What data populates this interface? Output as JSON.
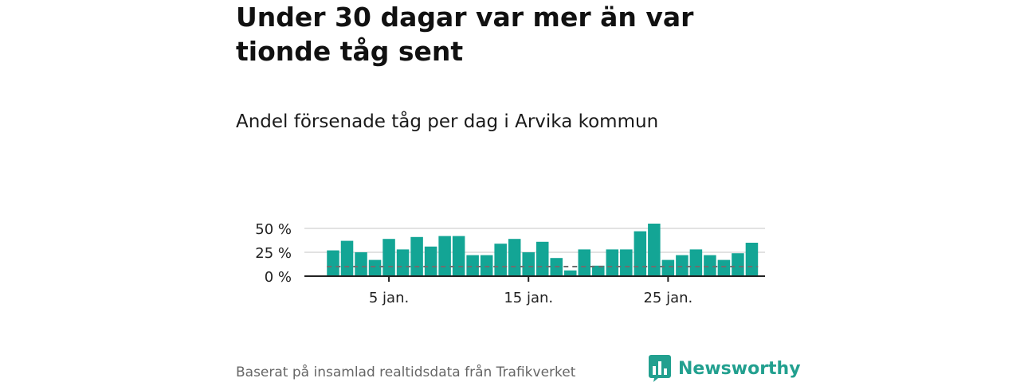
{
  "title": "Under 30 dagar var mer än var tionde tåg sent",
  "subtitle": "Andel försenade tåg per dag i Arvika kommun",
  "footer": {
    "source": "Baserat på insamlad realtidsdata från Trafikverket",
    "brand": "Newsworthy"
  },
  "colors": {
    "bar": "#13a595",
    "grid": "#d8d8d8",
    "axis": "#222222",
    "reference_line": "#6e6e6e",
    "brand": "#22a08f"
  },
  "chart_data": {
    "type": "bar",
    "x": [
      1,
      2,
      3,
      4,
      5,
      6,
      7,
      8,
      9,
      10,
      11,
      12,
      13,
      14,
      15,
      16,
      17,
      18,
      19,
      20,
      21,
      22,
      23,
      24,
      25,
      26,
      27,
      28,
      29,
      30,
      31
    ],
    "values": [
      27,
      37,
      25,
      17,
      39,
      28,
      41,
      31,
      42,
      42,
      22,
      22,
      34,
      39,
      25,
      36,
      19,
      6,
      28,
      11,
      28,
      28,
      47,
      55,
      17,
      22,
      28,
      22,
      17,
      24,
      35
    ],
    "unit": "%",
    "ylim": [
      0,
      55
    ],
    "yticks": [
      0,
      25,
      50
    ],
    "ytick_labels": [
      "0 %",
      "25 %",
      "50 %"
    ],
    "xticks": [
      5,
      15,
      25
    ],
    "xtick_labels": [
      "5 jan.",
      "15 jan.",
      "25 jan."
    ],
    "reference_line": 10,
    "grid": true
  }
}
